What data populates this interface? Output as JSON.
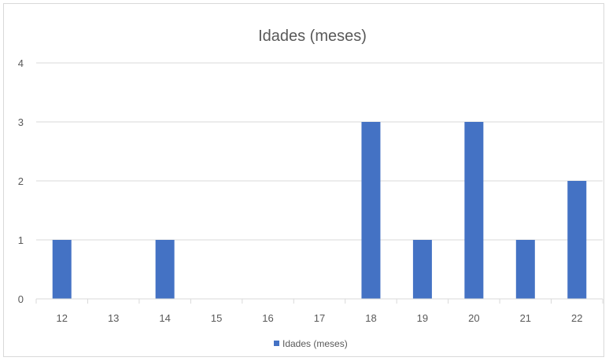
{
  "chart_data": {
    "type": "bar",
    "title": "Idades (meses)",
    "categories": [
      "12",
      "13",
      "14",
      "15",
      "16",
      "17",
      "18",
      "19",
      "20",
      "21",
      "22"
    ],
    "series": [
      {
        "name": "Idades (meses)",
        "values": [
          1,
          0,
          1,
          0,
          0,
          0,
          3,
          1,
          3,
          1,
          2
        ],
        "color": "#4472c4"
      }
    ],
    "xlabel": "",
    "ylabel": "",
    "ylim": [
      0,
      4
    ],
    "yticks": [
      "0",
      "1",
      "2",
      "3",
      "4"
    ],
    "grid": true,
    "legend": "bottom"
  }
}
